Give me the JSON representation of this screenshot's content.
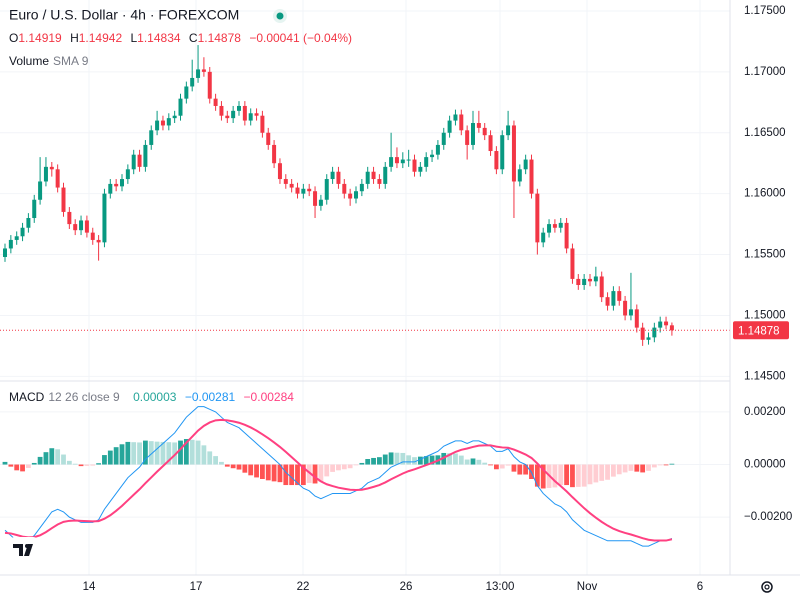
{
  "header": {
    "title": "Euro / U.S. Dollar · 4h · FOREXCOM",
    "ohlc_labels": [
      "O",
      "H",
      "L",
      "C"
    ],
    "change": "−0.00041 (−0.04%)",
    "volume_label": "Volume",
    "volume_setting": "SMA 9",
    "x_labels": [
      "14",
      "17",
      "22",
      "26",
      "13:00",
      "Nov",
      "6"
    ]
  },
  "chart_data": [
    {
      "type": "candlestick",
      "up_color": "#089981",
      "down_color": "#f23645",
      "ylim": [
        1.1447,
        1.1759
      ],
      "yticks": [
        {
          "value": 1.145,
          "label": "1.14500"
        },
        {
          "value": 1.15,
          "label": "1.15000"
        },
        {
          "value": 1.155,
          "label": "1.15500"
        },
        {
          "value": 1.16,
          "label": "1.16000"
        },
        {
          "value": 1.165,
          "label": "1.16500"
        },
        {
          "value": 1.17,
          "label": "1.17000"
        },
        {
          "value": 1.175,
          "label": "1.17500"
        }
      ],
      "candles": [
        [
          1.1548,
          1.1559,
          1.1544,
          1.1555
        ],
        [
          1.1555,
          1.1566,
          1.1551,
          1.1562
        ],
        [
          1.1562,
          1.1569,
          1.1558,
          1.1565
        ],
        [
          1.1565,
          1.1576,
          1.1561,
          1.1572
        ],
        [
          1.1572,
          1.1584,
          1.1568,
          1.158
        ],
        [
          1.158,
          1.1599,
          1.1576,
          1.1595
        ],
        [
          1.1595,
          1.163,
          1.1591,
          1.161
        ],
        [
          1.161,
          1.163,
          1.1606,
          1.1622
        ],
        [
          1.1622,
          1.1626,
          1.1614,
          1.162
        ],
        [
          1.162,
          1.1624,
          1.1601,
          1.1605
        ],
        [
          1.1605,
          1.1609,
          1.1581,
          1.1585
        ],
        [
          1.1585,
          1.1589,
          1.1571,
          1.1575
        ],
        [
          1.1575,
          1.1579,
          1.1566,
          1.157
        ],
        [
          1.157,
          1.1582,
          1.1566,
          1.1578
        ],
        [
          1.1578,
          1.1582,
          1.1564,
          1.1568
        ],
        [
          1.1568,
          1.1572,
          1.1558,
          1.1562
        ],
        [
          1.1562,
          1.1566,
          1.1545,
          1.156
        ],
        [
          1.156,
          1.1604,
          1.1556,
          1.16
        ],
        [
          1.16,
          1.1612,
          1.1596,
          1.1608
        ],
        [
          1.1608,
          1.1612,
          1.1602,
          1.1606
        ],
        [
          1.1606,
          1.1616,
          1.1602,
          1.1612
        ],
        [
          1.1612,
          1.1624,
          1.1608,
          1.162
        ],
        [
          1.162,
          1.1636,
          1.1616,
          1.1632
        ],
        [
          1.1632,
          1.1636,
          1.1618,
          1.1622
        ],
        [
          1.1622,
          1.1644,
          1.1618,
          1.164
        ],
        [
          1.164,
          1.1656,
          1.1636,
          1.1652
        ],
        [
          1.1652,
          1.1668,
          1.1648,
          1.166
        ],
        [
          1.166,
          1.1664,
          1.1652,
          1.1656
        ],
        [
          1.1656,
          1.1666,
          1.1652,
          1.1662
        ],
        [
          1.1662,
          1.1668,
          1.1658,
          1.1664
        ],
        [
          1.1664,
          1.1682,
          1.166,
          1.1678
        ],
        [
          1.1678,
          1.1692,
          1.1674,
          1.1688
        ],
        [
          1.1688,
          1.171,
          1.1684,
          1.1695
        ],
        [
          1.1695,
          1.1722,
          1.1691,
          1.1702
        ],
        [
          1.1702,
          1.1712,
          1.1696,
          1.17
        ],
        [
          1.17,
          1.1704,
          1.1674,
          1.1678
        ],
        [
          1.1678,
          1.1682,
          1.1668,
          1.1672
        ],
        [
          1.1672,
          1.1676,
          1.166,
          1.1664
        ],
        [
          1.1664,
          1.1668,
          1.1658,
          1.1662
        ],
        [
          1.1662,
          1.1672,
          1.1658,
          1.1668
        ],
        [
          1.1668,
          1.1676,
          1.1664,
          1.1672
        ],
        [
          1.1672,
          1.1676,
          1.1656,
          1.166
        ],
        [
          1.166,
          1.167,
          1.1656,
          1.1666
        ],
        [
          1.1666,
          1.167,
          1.166,
          1.1664
        ],
        [
          1.1664,
          1.1668,
          1.1646,
          1.165
        ],
        [
          1.165,
          1.1654,
          1.1636,
          1.164
        ],
        [
          1.164,
          1.1644,
          1.1621,
          1.1625
        ],
        [
          1.1625,
          1.1629,
          1.1608,
          1.1612
        ],
        [
          1.1612,
          1.1616,
          1.1604,
          1.1608
        ],
        [
          1.1608,
          1.1612,
          1.1601,
          1.1605
        ],
        [
          1.1605,
          1.1609,
          1.1596,
          1.16
        ],
        [
          1.16,
          1.1608,
          1.1596,
          1.1604
        ],
        [
          1.1604,
          1.1608,
          1.1598,
          1.1602
        ],
        [
          1.1602,
          1.1606,
          1.158,
          1.159
        ],
        [
          1.159,
          1.1599,
          1.1586,
          1.1595
        ],
        [
          1.1595,
          1.1616,
          1.1591,
          1.1612
        ],
        [
          1.1612,
          1.1622,
          1.1608,
          1.1618
        ],
        [
          1.1618,
          1.1622,
          1.1604,
          1.1608
        ],
        [
          1.1608,
          1.1612,
          1.1596,
          1.16
        ],
        [
          1.16,
          1.1604,
          1.159,
          1.1596
        ],
        [
          1.1596,
          1.1606,
          1.1592,
          1.1602
        ],
        [
          1.1602,
          1.1612,
          1.1598,
          1.1608
        ],
        [
          1.1608,
          1.1622,
          1.1604,
          1.1618
        ],
        [
          1.1618,
          1.1622,
          1.1608,
          1.1612
        ],
        [
          1.1612,
          1.1616,
          1.1604,
          1.1608
        ],
        [
          1.1608,
          1.1626,
          1.1604,
          1.1622
        ],
        [
          1.1622,
          1.165,
          1.1618,
          1.163
        ],
        [
          1.163,
          1.1638,
          1.1621,
          1.1625
        ],
        [
          1.1625,
          1.1634,
          1.1621,
          1.1628
        ],
        [
          1.1628,
          1.1636,
          1.1622,
          1.1628
        ],
        [
          1.1628,
          1.1632,
          1.1614,
          1.1618
        ],
        [
          1.1618,
          1.1626,
          1.1614,
          1.1622
        ],
        [
          1.1622,
          1.1634,
          1.1618,
          1.163
        ],
        [
          1.163,
          1.1636,
          1.1626,
          1.1632
        ],
        [
          1.1632,
          1.1644,
          1.1628,
          1.164
        ],
        [
          1.164,
          1.1654,
          1.1636,
          1.165
        ],
        [
          1.165,
          1.1664,
          1.1646,
          1.166
        ],
        [
          1.166,
          1.1669,
          1.1656,
          1.1665
        ],
        [
          1.1665,
          1.1669,
          1.1648,
          1.1652
        ],
        [
          1.1652,
          1.1656,
          1.1628,
          1.164
        ],
        [
          1.164,
          1.1668,
          1.1636,
          1.1658
        ],
        [
          1.1658,
          1.1668,
          1.165,
          1.1654
        ],
        [
          1.1654,
          1.1658,
          1.1644,
          1.1648
        ],
        [
          1.1648,
          1.1652,
          1.1631,
          1.1635
        ],
        [
          1.1635,
          1.1639,
          1.1616,
          1.162
        ],
        [
          1.162,
          1.1652,
          1.1616,
          1.1648
        ],
        [
          1.1648,
          1.1668,
          1.1644,
          1.1656
        ],
        [
          1.1656,
          1.166,
          1.158,
          1.161
        ],
        [
          1.161,
          1.1624,
          1.1606,
          1.162
        ],
        [
          1.162,
          1.1632,
          1.1616,
          1.1628
        ],
        [
          1.1628,
          1.1632,
          1.1596,
          1.16
        ],
        [
          1.16,
          1.1604,
          1.155,
          1.156
        ],
        [
          1.156,
          1.1572,
          1.1556,
          1.1568
        ],
        [
          1.1568,
          1.1579,
          1.1564,
          1.1575
        ],
        [
          1.1575,
          1.1579,
          1.1568,
          1.1572
        ],
        [
          1.1572,
          1.158,
          1.1568,
          1.1576
        ],
        [
          1.1576,
          1.158,
          1.1551,
          1.1555
        ],
        [
          1.1555,
          1.1559,
          1.1526,
          1.153
        ],
        [
          1.153,
          1.1534,
          1.1521,
          1.1525
        ],
        [
          1.1525,
          1.1534,
          1.1521,
          1.153
        ],
        [
          1.153,
          1.1534,
          1.1524,
          1.1528
        ],
        [
          1.1528,
          1.154,
          1.1524,
          1.1532
        ],
        [
          1.1532,
          1.1536,
          1.1511,
          1.1515
        ],
        [
          1.1515,
          1.1519,
          1.1504,
          1.1508
        ],
        [
          1.1508,
          1.1524,
          1.1504,
          1.152
        ],
        [
          1.152,
          1.1524,
          1.1508,
          1.1512
        ],
        [
          1.1512,
          1.1516,
          1.1496,
          1.15
        ],
        [
          1.15,
          1.1535,
          1.1496,
          1.1505
        ],
        [
          1.1505,
          1.1509,
          1.1486,
          1.149
        ],
        [
          1.149,
          1.1494,
          1.1475,
          1.148
        ],
        [
          1.148,
          1.1486,
          1.1476,
          1.1482
        ],
        [
          1.1482,
          1.1494,
          1.1478,
          1.149
        ],
        [
          1.149,
          1.1499,
          1.1486,
          1.1495
        ],
        [
          1.1495,
          1.1499,
          1.14887,
          1.14919
        ],
        [
          1.14919,
          1.14942,
          1.14834,
          1.14878
        ]
      ]
    },
    {
      "type": "macd",
      "label": "MACD",
      "settings": "12 26 close 9",
      "legend_values": [
        "0.00003",
        "−0.00281",
        "−0.00284"
      ],
      "ylim": [
        -0.0042,
        0.0031
      ],
      "yticks": [
        {
          "value": 0.002,
          "label": "0.00200"
        },
        {
          "value": 0,
          "label": "0.00000"
        },
        {
          "value": -0.002,
          "label": "−0.00200"
        }
      ],
      "histogram": {
        "colors": [
          "#26a69a",
          "#b2dfdb",
          "#ff5252",
          "#ffcdd2"
        ],
        "values": [
          0.0001,
          -8e-05,
          -0.00022,
          -0.00026,
          -0.00013,
          6e-05,
          0.00029,
          0.00047,
          0.00062,
          0.00058,
          0.00038,
          0.00014,
          3e-05,
          -6e-05,
          -5e-05,
          -4e-05,
          5e-05,
          0.00036,
          0.00053,
          0.00066,
          0.00077,
          0.00086,
          0.00085,
          0.00084,
          0.00091,
          0.00089,
          0.00087,
          0.00086,
          0.00085,
          0.00084,
          0.00091,
          0.00097,
          0.00094,
          0.00091,
          0.00073,
          0.0005,
          0.00032,
          0.0001,
          -8e-05,
          -0.00014,
          -0.00019,
          -0.00031,
          -0.00041,
          -0.00049,
          -0.00055,
          -0.0006,
          -0.00064,
          -0.00067,
          -0.00078,
          -0.00078,
          -0.00078,
          -0.00078,
          -0.0007,
          -0.00072,
          -0.00066,
          -0.00045,
          -0.00028,
          -0.00022,
          -0.00018,
          -0.00014,
          -3e-05,
          6e-05,
          0.00021,
          0.00025,
          0.00028,
          0.00038,
          0.00046,
          0.00045,
          0.00044,
          0.00035,
          0.00028,
          0.0003,
          0.00032,
          0.00034,
          0.00035,
          0.00044,
          0.00043,
          0.00042,
          0.00034,
          0.00019,
          0.00023,
          0.00018,
          7e-05,
          -3e-05,
          -0.00018,
          -0.00015,
          -4e-05,
          -0.00027,
          -0.00038,
          -0.00038,
          -0.00055,
          -0.00084,
          -0.00091,
          -0.00089,
          -0.00087,
          -0.00078,
          -0.00078,
          -0.00086,
          -0.00085,
          -0.00084,
          -0.00075,
          -0.00068,
          -0.00062,
          -0.00058,
          -0.00046,
          -0.00037,
          -0.0003,
          -0.00024,
          -0.00027,
          -0.0003,
          -0.00024,
          -0.00011,
          -1e-05,
          -1e-05,
          3e-05
        ]
      },
      "macd": {
        "color": "#2196f3",
        "values": [
          -0.0025,
          -0.0027,
          -0.0029,
          -0.003,
          -0.0029,
          -0.0027,
          -0.0024,
          -0.0021,
          -0.0018,
          -0.0017,
          -0.0018,
          -0.002,
          -0.0021,
          -0.0022,
          -0.0022,
          -0.0022,
          -0.0021,
          -0.0017,
          -0.0014,
          -0.0011,
          -0.0008,
          -0.0005,
          -0.0003,
          -0.0001,
          0.0002,
          0.0004,
          0.0006,
          0.0008,
          0.001,
          0.0012,
          0.0015,
          0.0018,
          0.002,
          0.0022,
          0.0022,
          0.0021,
          0.002,
          0.0018,
          0.0016,
          0.0015,
          0.0014,
          0.0012,
          0.001,
          0.0008,
          0.0006,
          0.0004,
          0.0002,
          0,
          -0.0003,
          -0.0005,
          -0.0007,
          -0.0009,
          -0.001,
          -0.0012,
          -0.0013,
          -0.0012,
          -0.0011,
          -0.0011,
          -0.0011,
          -0.0011,
          -0.001,
          -0.0009,
          -0.0007,
          -0.0006,
          -0.0005,
          -0.0003,
          -0.0001,
          0,
          0.0001,
          0.0001,
          0.0001,
          0.0002,
          0.0003,
          0.0004,
          0.0005,
          0.0007,
          0.0008,
          0.0009,
          0.0009,
          0.0008,
          0.0009,
          0.0009,
          0.0008,
          0.0007,
          0.0005,
          0.0005,
          0.0006,
          0.0003,
          0.0001,
          0,
          -0.0003,
          -0.0008,
          -0.0011,
          -0.0013,
          -0.0015,
          -0.0016,
          -0.0018,
          -0.0021,
          -0.0023,
          -0.0025,
          -0.0026,
          -0.0027,
          -0.0028,
          -0.0029,
          -0.0029,
          -0.0029,
          -0.0029,
          -0.0029,
          -0.003,
          -0.0031,
          -0.0031,
          -0.003,
          -0.0029,
          -0.0029,
          -0.00281
        ]
      },
      "signal": {
        "color": "#ff4081",
        "values": [
          -0.0026,
          -0.00262,
          -0.00268,
          -0.00274,
          -0.00277,
          -0.00276,
          -0.00269,
          -0.00257,
          -0.00242,
          -0.00228,
          -0.00218,
          -0.00214,
          -0.00213,
          -0.00214,
          -0.00215,
          -0.00216,
          -0.00215,
          -0.00206,
          -0.00193,
          -0.00176,
          -0.00157,
          -0.00136,
          -0.00115,
          -0.00094,
          -0.00071,
          -0.00049,
          -0.00027,
          -6e-05,
          0.00015,
          0.00036,
          0.00059,
          0.00083,
          0.00106,
          0.00129,
          0.00147,
          0.0016,
          0.00168,
          0.0017,
          0.00168,
          0.00164,
          0.00159,
          0.00151,
          0.00141,
          0.00129,
          0.00115,
          0.001,
          0.00084,
          0.00067,
          0.00048,
          0.00028,
          8e-05,
          -0.00012,
          -0.0003,
          -0.00048,
          -0.00064,
          -0.00075,
          -0.00082,
          -0.00088,
          -0.00092,
          -0.00096,
          -0.00097,
          -0.00096,
          -0.00091,
          -0.00085,
          -0.00078,
          -0.00068,
          -0.00056,
          -0.00045,
          -0.00034,
          -0.00025,
          -0.00018,
          -0.0001,
          -2e-05,
          6e-05,
          0.00015,
          0.00026,
          0.00037,
          0.00048,
          0.00056,
          0.00061,
          0.00067,
          0.00072,
          0.00073,
          0.00073,
          0.00068,
          0.00065,
          0.00064,
          0.00057,
          0.00048,
          0.00038,
          0.00025,
          4e-05,
          -0.00019,
          -0.00041,
          -0.00063,
          -0.00082,
          -0.00102,
          -0.00124,
          -0.00145,
          -0.00166,
          -0.00185,
          -0.00202,
          -0.00218,
          -0.00232,
          -0.00244,
          -0.00253,
          -0.0026,
          -0.00266,
          -0.00273,
          -0.0028,
          -0.00286,
          -0.00289,
          -0.00289,
          -0.00289,
          -0.00284
        ]
      }
    }
  ]
}
